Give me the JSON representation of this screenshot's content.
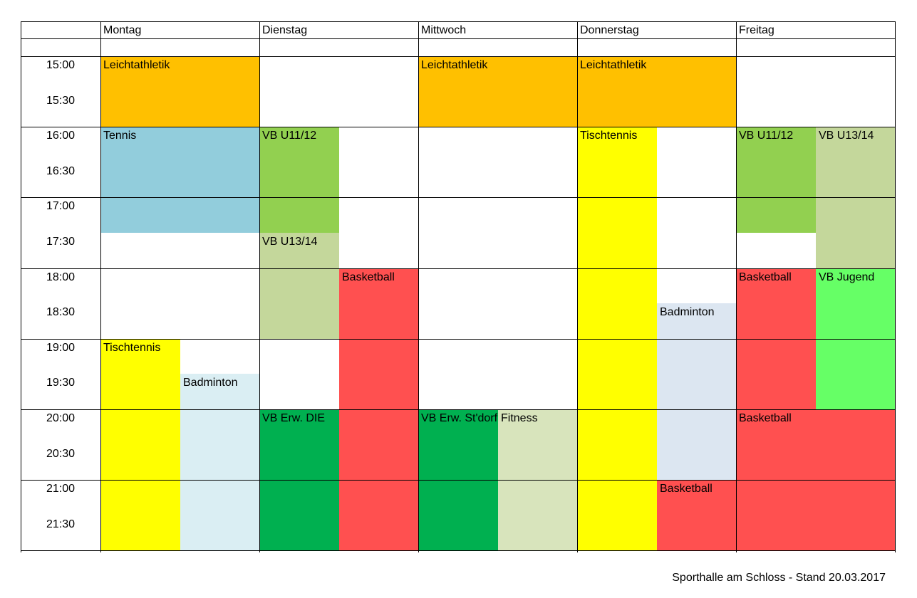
{
  "days": [
    "Montag",
    "Dienstag",
    "Mittwoch",
    "Donnerstag",
    "Freitag"
  ],
  "times": [
    "15:00",
    "15:30",
    "16:00",
    "16:30",
    "17:00",
    "17:30",
    "18:00",
    "18:30",
    "19:00",
    "19:30",
    "20:00",
    "20:30",
    "21:00",
    "21:30"
  ],
  "colors": {
    "leichtathletik": "#FFC000",
    "tennis": "#92CDDC",
    "vb_u11": "#92D050",
    "vb_u13": "#C4D79B",
    "basketball": "#FF5050",
    "tischtennis": "#FFFF00",
    "badminton_mo": "#DAEEF3",
    "badminton_do": "#DCE6F1",
    "vb_erw": "#00B050",
    "fitness": "#D8E4BC",
    "vb_jugend": "#66FF66"
  },
  "events": [
    {
      "day": 0,
      "sub": "full",
      "start": 0,
      "end": 2,
      "label": "Leichtathletik",
      "color": "leichtathletik"
    },
    {
      "day": 2,
      "sub": "full",
      "start": 0,
      "end": 2,
      "label": "Leichtathletik",
      "color": "leichtathletik"
    },
    {
      "day": 3,
      "sub": "full",
      "start": 0,
      "end": 2,
      "label": "Leichtathletik",
      "color": "leichtathletik"
    },
    {
      "day": 0,
      "sub": "full",
      "start": 2,
      "end": 5,
      "label": "Tennis",
      "color": "tennis"
    },
    {
      "day": 0,
      "sub": "left",
      "start": 8,
      "end": 14,
      "label": "Tischtennis",
      "color": "tischtennis"
    },
    {
      "day": 0,
      "sub": "right",
      "start": 9,
      "end": 14,
      "label": "Badminton",
      "color": "badminton_mo"
    },
    {
      "day": 1,
      "sub": "left",
      "start": 2,
      "end": 5,
      "label": "VB U11/12",
      "color": "vb_u11"
    },
    {
      "day": 1,
      "sub": "left",
      "start": 5,
      "end": 8,
      "label": "VB U13/14",
      "color": "vb_u13"
    },
    {
      "day": 1,
      "sub": "right",
      "start": 6,
      "end": 14,
      "label": "Basketball",
      "color": "basketball"
    },
    {
      "day": 1,
      "sub": "left",
      "start": 10,
      "end": 14,
      "label": "VB Erw. DIE",
      "color": "vb_erw"
    },
    {
      "day": 2,
      "sub": "left",
      "start": 10,
      "end": 14,
      "label": "VB Erw. St'dorf",
      "color": "vb_erw"
    },
    {
      "day": 2,
      "sub": "right",
      "start": 10,
      "end": 14,
      "label": "Fitness",
      "color": "fitness"
    },
    {
      "day": 3,
      "sub": "left",
      "start": 2,
      "end": 14,
      "label": "Tischtennis",
      "color": "tischtennis"
    },
    {
      "day": 3,
      "sub": "right",
      "start": 7,
      "end": 12,
      "label": "Badminton",
      "color": "badminton_do"
    },
    {
      "day": 3,
      "sub": "right",
      "start": 12,
      "end": 14,
      "label": "Basketball",
      "color": "basketball"
    },
    {
      "day": 4,
      "sub": "left",
      "start": 2,
      "end": 5,
      "label": "VB U11/12",
      "color": "vb_u11"
    },
    {
      "day": 4,
      "sub": "right",
      "start": 2,
      "end": 6,
      "label": "VB U13/14",
      "color": "vb_u13"
    },
    {
      "day": 4,
      "sub": "left",
      "start": 6,
      "end": 10,
      "label": "Basketball",
      "color": "basketball"
    },
    {
      "day": 4,
      "sub": "right",
      "start": 6,
      "end": 10,
      "label": "VB Jugend",
      "color": "vb_jugend"
    },
    {
      "day": 4,
      "sub": "full",
      "start": 10,
      "end": 14,
      "label": "Basketball",
      "color": "basketball"
    }
  ],
  "footer": "Sporthalle am Schloss - Stand 20.03.2017"
}
